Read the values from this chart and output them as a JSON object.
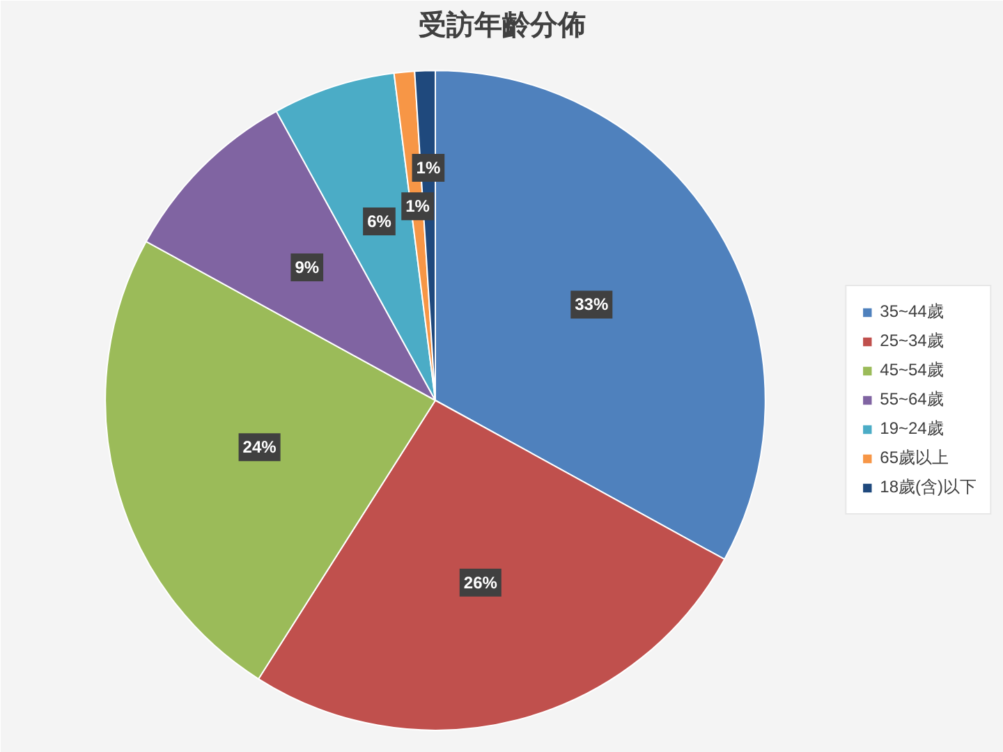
{
  "chart_data": {
    "type": "pie",
    "title": "受訪年齡分佈",
    "categories": [
      "35~44歲",
      "25~34歲",
      "45~54歲",
      "55~64歲",
      "19~24歲",
      "65歲以上",
      "18歲(含)以下"
    ],
    "values": [
      33,
      26,
      24,
      9,
      6,
      1,
      1
    ],
    "colors": [
      "#4f81bd",
      "#c0504d",
      "#9bbb59",
      "#8064a2",
      "#4bacc6",
      "#f79646",
      "#1f497d"
    ],
    "value_labels": [
      "33%",
      "26%",
      "24%",
      "9%",
      "6%",
      "1%",
      "1%"
    ],
    "legend": "right"
  }
}
